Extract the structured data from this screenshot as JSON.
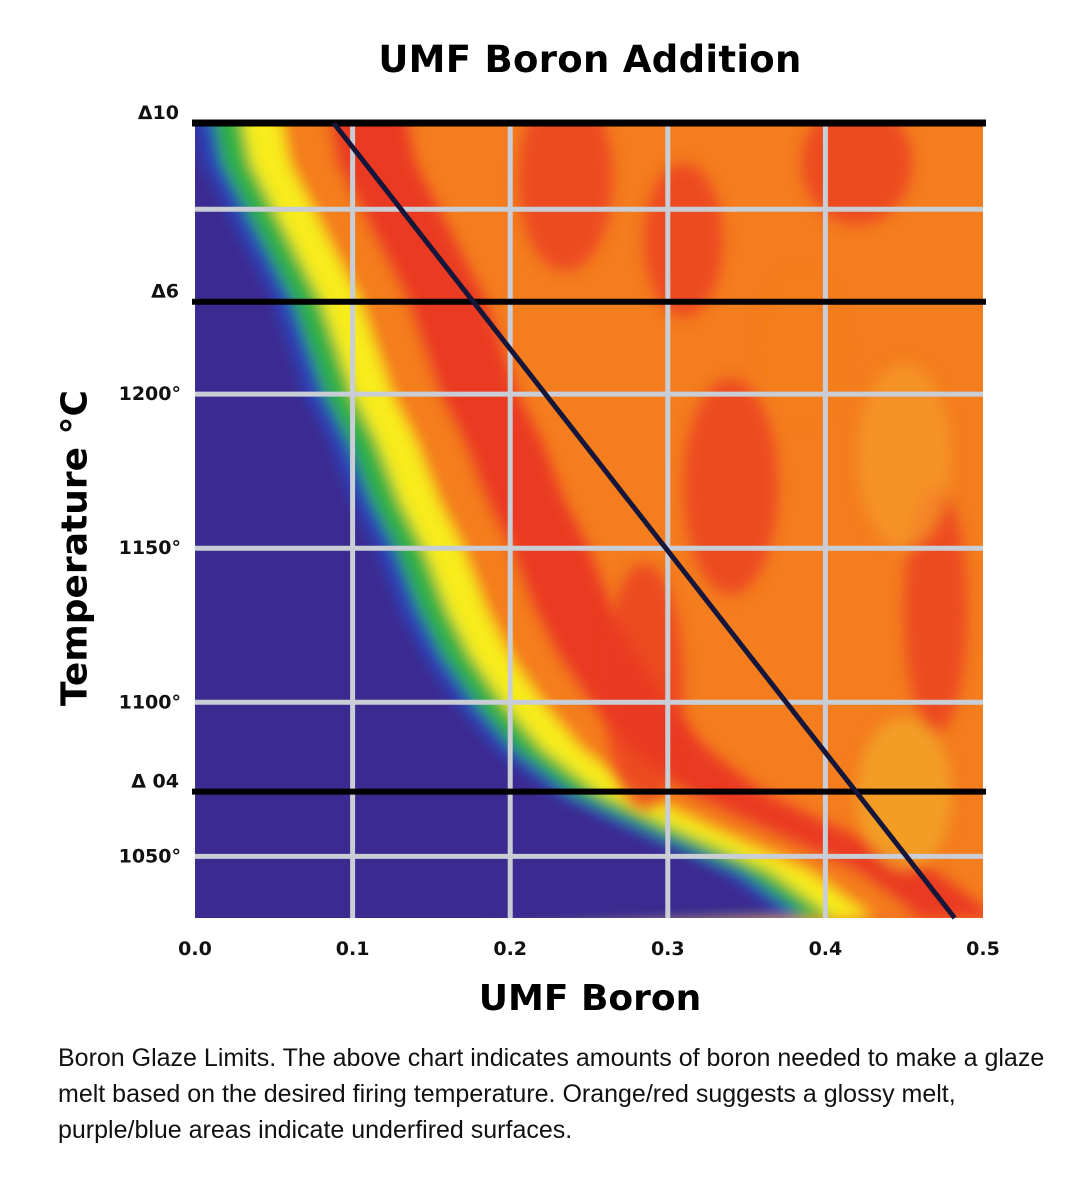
{
  "chart_data": {
    "type": "heatmap",
    "title": "UMF Boron Addition",
    "xlabel": "UMF Boron",
    "ylabel": "Temperature °C",
    "xlim": [
      0.0,
      0.5
    ],
    "ylim": [
      1030,
      1288
    ],
    "x_ticks": [
      {
        "value": 0.0,
        "label": "0.0"
      },
      {
        "value": 0.1,
        "label": "0.1"
      },
      {
        "value": 0.2,
        "label": "0.2"
      },
      {
        "value": 0.3,
        "label": "0.3"
      },
      {
        "value": 0.4,
        "label": "0.4"
      },
      {
        "value": 0.5,
        "label": "0.5"
      }
    ],
    "y_ticks": [
      {
        "value": 1050,
        "label": "1050°"
      },
      {
        "value": 1100,
        "label": "1100°"
      },
      {
        "value": 1150,
        "label": "1150°"
      },
      {
        "value": 1200,
        "label": "1200°"
      }
    ],
    "cone_lines": [
      {
        "value": 1288,
        "label": "Δ10"
      },
      {
        "value": 1230,
        "label": "Δ6"
      },
      {
        "value": 1071,
        "label": "Δ 04"
      }
    ],
    "limit_line": {
      "x": [
        0.088,
        0.482
      ],
      "y": [
        1288,
        1030
      ]
    },
    "underfire_boundary": {
      "y": [
        1030,
        1045,
        1060,
        1071,
        1085,
        1100,
        1115,
        1130,
        1150,
        1165,
        1185,
        1200,
        1215,
        1230,
        1245,
        1260,
        1275,
        1288
      ],
      "x": [
        0.375,
        0.335,
        0.27,
        0.225,
        0.19,
        0.165,
        0.145,
        0.13,
        0.115,
        0.1,
        0.085,
        0.07,
        0.06,
        0.05,
        0.035,
        0.02,
        0.005,
        0.0
      ]
    },
    "color_scale": {
      "underfired": "#3a2a8f",
      "blue": "#2a40b8",
      "green": "#2fb044",
      "yellow": "#f7ec1f",
      "orange": "#f47d1e",
      "red": "#ea3a22"
    },
    "grid": true
  },
  "caption": "Boron Glaze Limits. The above chart indicates amounts of boron needed to make a glaze melt based on the desired firing temperature. Orange/red suggests a glossy melt, purple/blue areas indicate underfired surfaces."
}
